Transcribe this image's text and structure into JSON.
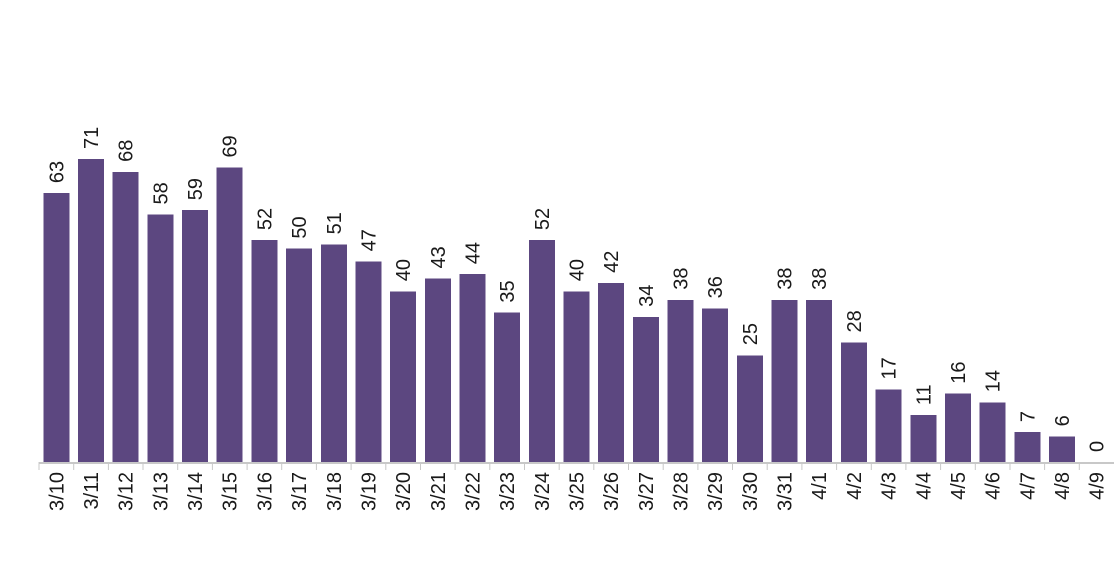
{
  "chart_data": {
    "type": "bar",
    "title": "",
    "xlabel": "",
    "ylabel": "",
    "categories": [
      "3/10",
      "3/11",
      "3/12",
      "3/13",
      "3/14",
      "3/15",
      "3/16",
      "3/17",
      "3/18",
      "3/19",
      "3/20",
      "3/21",
      "3/22",
      "3/23",
      "3/24",
      "3/25",
      "3/26",
      "3/27",
      "3/28",
      "3/29",
      "3/30",
      "3/31",
      "4/1",
      "4/2",
      "4/3",
      "4/4",
      "4/5",
      "4/6",
      "4/7",
      "4/8",
      "4/9"
    ],
    "values": [
      63,
      71,
      68,
      58,
      59,
      69,
      52,
      50,
      51,
      47,
      40,
      43,
      44,
      35,
      52,
      40,
      42,
      34,
      38,
      36,
      25,
      38,
      38,
      28,
      17,
      11,
      16,
      14,
      7,
      6,
      0
    ],
    "ylim": [
      0,
      71
    ],
    "grid": false,
    "data_labels": true,
    "bar_color": "#5c4780",
    "axis_color": "#c8c8c8",
    "label_color": "#1a1a1a"
  }
}
